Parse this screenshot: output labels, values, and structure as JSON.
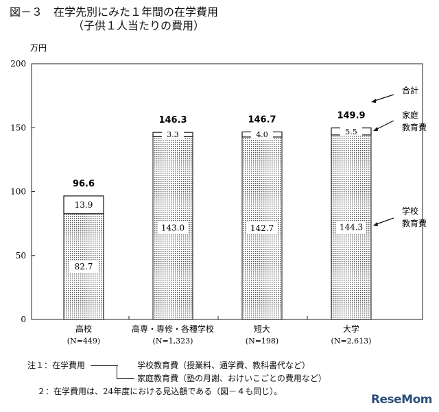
{
  "title": {
    "line1": "図－３　在学先別にみた１年間の在学費用",
    "line2": "（子供１人当たりの費用）"
  },
  "chart_data": {
    "type": "bar",
    "stacked": true,
    "y_unit": "万円",
    "ylim": [
      0,
      200
    ],
    "yticks": [
      0,
      50,
      100,
      150,
      200
    ],
    "grid": false,
    "categories": [
      {
        "name": "高校",
        "n": "(N=449)"
      },
      {
        "name": "高専・専修・各種学校",
        "n": "(N=1,323)"
      },
      {
        "name": "短大",
        "n": "(N=198)"
      },
      {
        "name": "大学",
        "n": "(N=2,613)"
      }
    ],
    "series": [
      {
        "name": "学校教育費",
        "values": [
          82.7,
          143.0,
          142.7,
          144.3
        ],
        "labels": [
          "82.7",
          "143.0",
          "142.7",
          "144.3"
        ],
        "fill": "dotted"
      },
      {
        "name": "家庭教育費",
        "values": [
          13.9,
          3.3,
          4.0,
          5.5
        ],
        "labels": [
          "13.9",
          "3.3",
          "4.0",
          "5.5"
        ],
        "fill": "white"
      }
    ],
    "totals": [
      96.6,
      146.3,
      146.7,
      149.9
    ],
    "total_labels": [
      "96.6",
      "146.3",
      "146.7",
      "149.9"
    ],
    "legend_callouts": {
      "total": "合計",
      "home_line1": "家庭",
      "home_line2": "教育費",
      "school_line1": "学校",
      "school_line2": "教育費"
    }
  },
  "notes": {
    "n1_prefix": "注１：在学費用",
    "n1_item1": "学校教育費（授業料、通学費、教科書代など）",
    "n1_item2": "家庭教育費（塾の月謝、おけいこごとの費用など）",
    "n2": "２：在学費用は、24年度における見込額である（図－４も同じ）。"
  },
  "watermark": "ReseMom"
}
